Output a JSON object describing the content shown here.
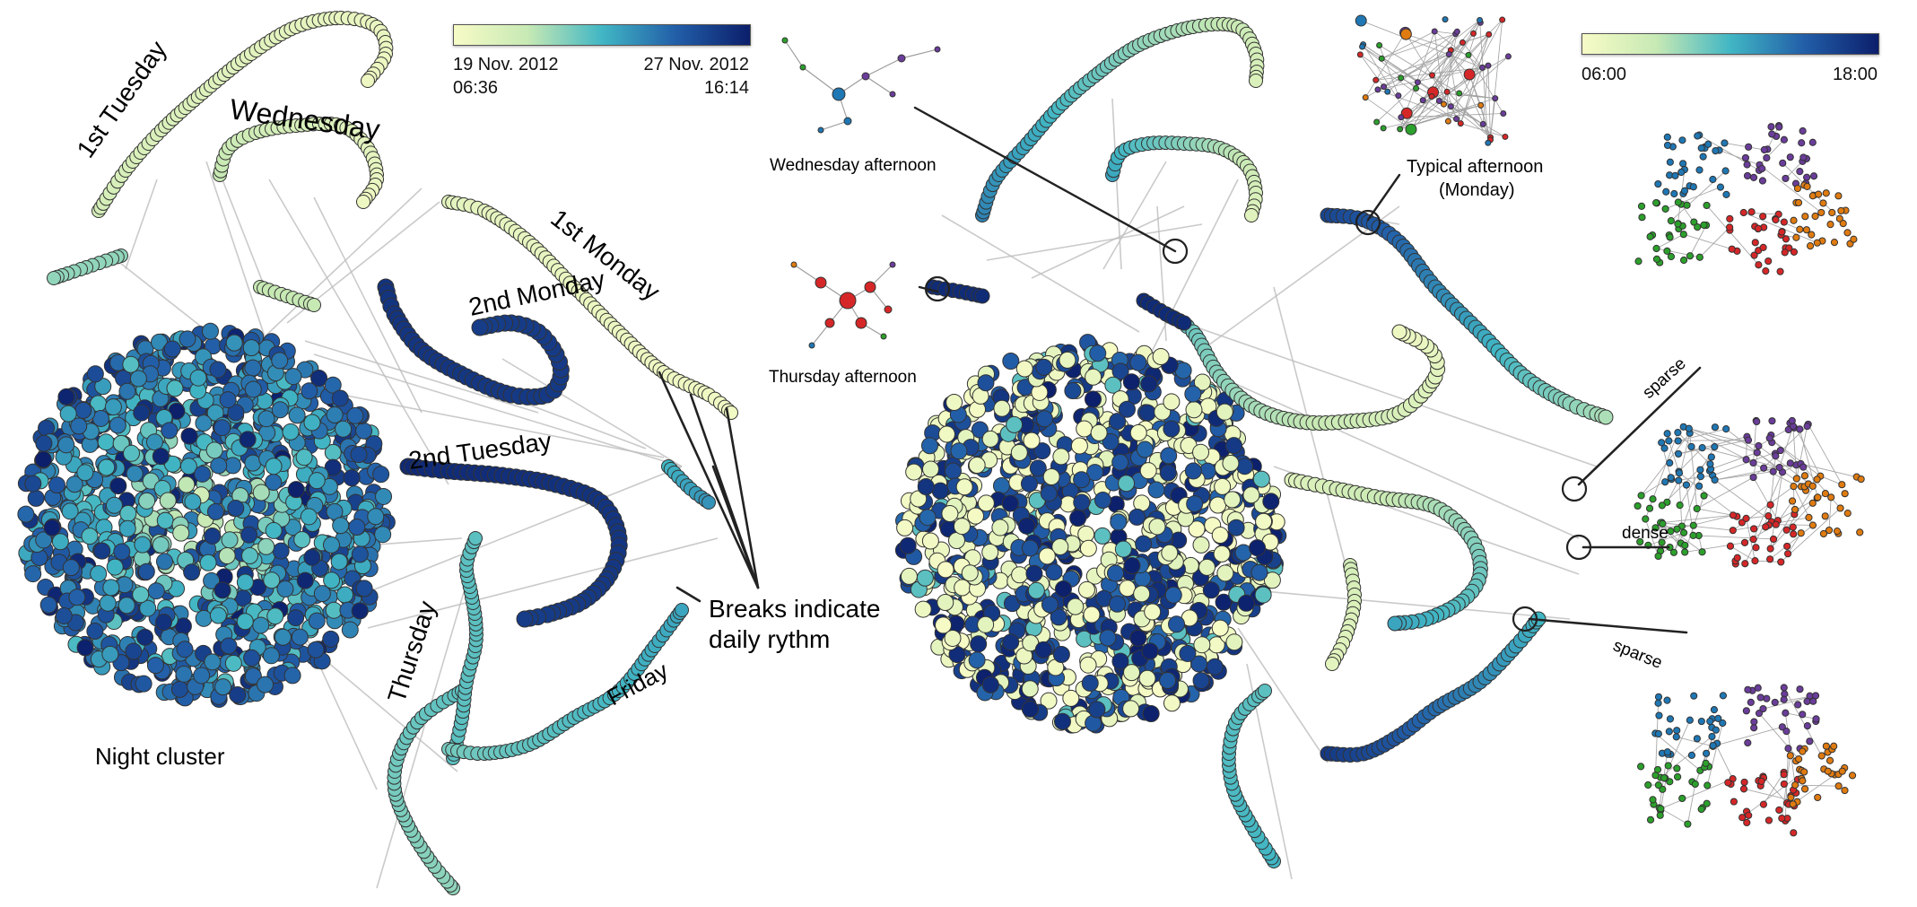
{
  "left_panel": {
    "colorbar": {
      "start_label_line1": "19 Nov. 2012",
      "start_label_line2": "06:36",
      "end_label_line1": "27 Nov. 2012",
      "end_label_line2": "16:14",
      "gradient": [
        "#f7fbc6",
        "#c7e9b4",
        "#41b6c4",
        "#225ea8",
        "#0c1f6b"
      ]
    },
    "labels": {
      "tuesday1": "1st Tuesday",
      "wednesday": "Wednesday",
      "monday1": "1st Monday",
      "monday2": "2nd Monday",
      "tuesday2": "2nd Tuesday",
      "thursday": "Thursday",
      "friday": "Friday",
      "night_cluster": "Night cluster",
      "breaks_line1": "Breaks indicate",
      "breaks_line2": "daily rythm"
    }
  },
  "right_panel": {
    "colorbar": {
      "start_label": "06:00",
      "end_label": "18:00",
      "gradient": [
        "#f7fbc6",
        "#c7e9b4",
        "#41b6c4",
        "#225ea8",
        "#0c1f6b"
      ]
    },
    "labels": {
      "wednesday_afternoon": "Wednesday afternoon",
      "thursday_afternoon": "Thursday afternoon",
      "typical_afternoon_line1": "Typical afternoon",
      "typical_afternoon_line2": "(Monday)",
      "sparse1": "sparse",
      "dense": "dense",
      "sparse2": "sparse"
    }
  },
  "colors": {
    "node_stroke": "#333333",
    "edge": "#bdbdbd",
    "community_blue": "#1f77b4",
    "community_purple": "#6a3d9a",
    "community_green": "#2ca02c",
    "community_red": "#d62728",
    "community_orange": "#e07b10"
  }
}
